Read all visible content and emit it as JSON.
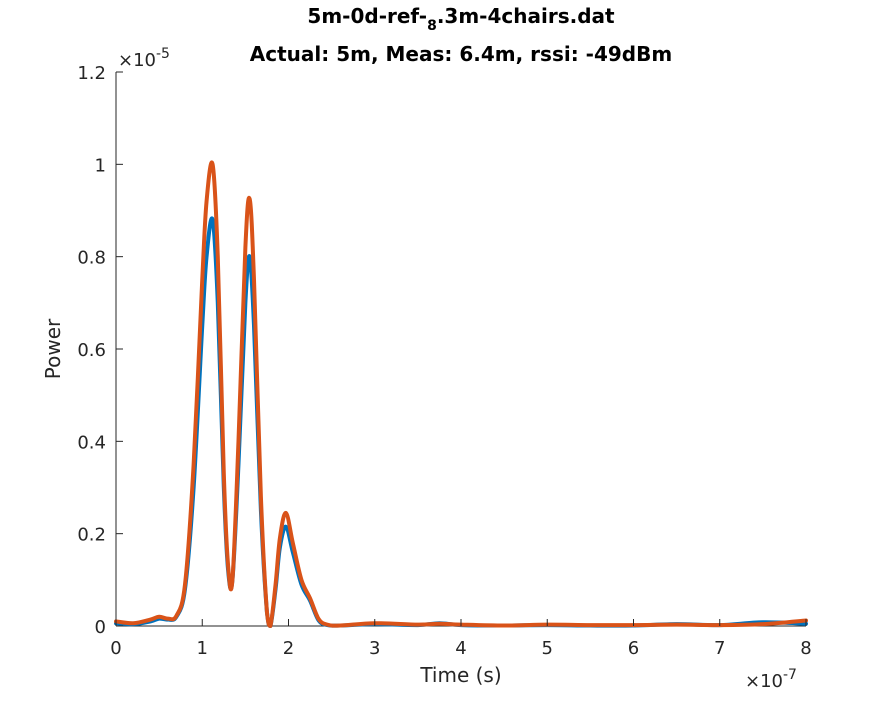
{
  "chart_data": {
    "type": "line",
    "title": {
      "prefix": "5m-0d-ref-",
      "subscript": "8",
      "suffix": ".3m-4chairs.dat"
    },
    "subtitle": "Actual: 5m, Meas: 6.4m, rssi: -49dBm",
    "xlabel": "Time (s)",
    "ylabel": "Power",
    "x_exponent": "×10",
    "x_exponent_power": "-7",
    "y_exponent": "×10",
    "y_exponent_power": "-5",
    "xlim": [
      0,
      8
    ],
    "ylim": [
      0,
      1.2
    ],
    "x_ticks": [
      "0",
      "1",
      "2",
      "3",
      "4",
      "5",
      "6",
      "7",
      "8"
    ],
    "y_ticks": [
      "0",
      "0.2",
      "0.4",
      "0.6",
      "0.8",
      "1",
      "1.2"
    ],
    "grid": false,
    "series": [
      {
        "color": "#0072BD",
        "x": [
          0,
          0.2,
          0.4,
          0.5,
          0.6,
          0.7,
          0.8,
          0.9,
          1.0,
          1.05,
          1.12,
          1.18,
          1.25,
          1.3,
          1.35,
          1.42,
          1.5,
          1.55,
          1.6,
          1.68,
          1.75,
          1.79,
          1.85,
          1.9,
          1.97,
          2.05,
          2.15,
          2.25,
          2.35,
          2.45,
          2.6,
          3.0,
          3.5,
          3.75,
          4.0,
          4.5,
          5.0,
          5.5,
          6.0,
          6.5,
          7.0,
          7.5,
          8.0
        ],
        "y": [
          0.006,
          0.004,
          0.01,
          0.016,
          0.014,
          0.02,
          0.08,
          0.3,
          0.65,
          0.8,
          0.88,
          0.7,
          0.3,
          0.12,
          0.1,
          0.35,
          0.7,
          0.8,
          0.65,
          0.25,
          0.03,
          0.0,
          0.08,
          0.17,
          0.215,
          0.16,
          0.09,
          0.055,
          0.012,
          0.002,
          0.001,
          0.004,
          0.002,
          0.006,
          0.002,
          0.001,
          0.002,
          0.001,
          0.001,
          0.004,
          0.002,
          0.008,
          0.005
        ]
      },
      {
        "color": "#D95319",
        "x": [
          0,
          0.2,
          0.4,
          0.5,
          0.6,
          0.7,
          0.8,
          0.9,
          1.0,
          1.05,
          1.12,
          1.18,
          1.25,
          1.3,
          1.35,
          1.42,
          1.5,
          1.55,
          1.6,
          1.68,
          1.75,
          1.79,
          1.85,
          1.9,
          1.97,
          2.05,
          2.15,
          2.25,
          2.35,
          2.45,
          2.6,
          3.0,
          3.5,
          3.75,
          4.0,
          4.5,
          5.0,
          5.5,
          6.0,
          6.5,
          7.0,
          7.5,
          8.0
        ],
        "y": [
          0.01,
          0.006,
          0.014,
          0.02,
          0.016,
          0.022,
          0.09,
          0.35,
          0.75,
          0.92,
          1.0,
          0.8,
          0.33,
          0.13,
          0.1,
          0.4,
          0.82,
          0.925,
          0.75,
          0.28,
          0.03,
          0.0,
          0.09,
          0.19,
          0.245,
          0.18,
          0.1,
          0.06,
          0.015,
          0.003,
          0.001,
          0.006,
          0.003,
          0.005,
          0.003,
          0.001,
          0.003,
          0.002,
          0.002,
          0.003,
          0.002,
          0.004,
          0.012
        ]
      }
    ]
  }
}
